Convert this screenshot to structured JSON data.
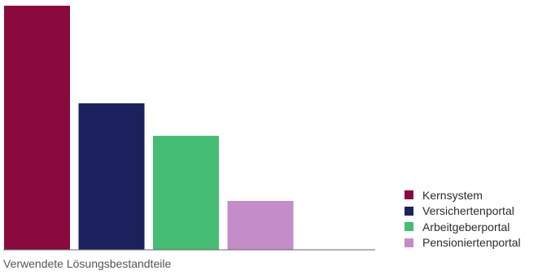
{
  "chart_data": {
    "type": "bar",
    "title": "",
    "xlabel": "Verwendete Lösungsbestandteile",
    "ylabel": "",
    "ylim": [
      0,
      100
    ],
    "grid": false,
    "legend_position": "right",
    "series": [
      {
        "name": "Kernsystem",
        "value": 100,
        "color": "#8b0a3e"
      },
      {
        "name": "Versichertenportal",
        "value": 60,
        "color": "#1b215c"
      },
      {
        "name": "Arbeitgeberportal",
        "value": 46.7,
        "color": "#45bd72"
      },
      {
        "name": "Pensioniertenportal",
        "value": 20,
        "color": "#c48cc8"
      }
    ]
  }
}
